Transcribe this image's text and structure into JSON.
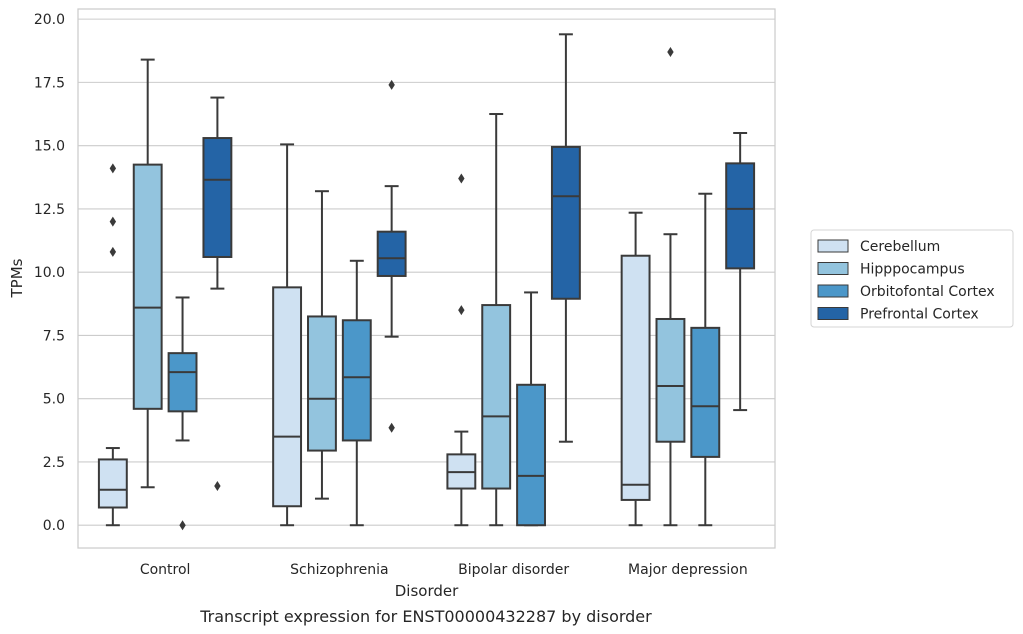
{
  "caption": "Transcript expression for ENST00000432287 by disorder",
  "chart_data": {
    "type": "box",
    "xlabel": "Disorder",
    "ylabel": "TPMs",
    "ylim": [
      -0.9,
      20.4
    ],
    "yticks": [
      "0.0",
      "2.5",
      "5.0",
      "7.5",
      "10.0",
      "12.5",
      "15.0",
      "17.5",
      "20.0"
    ],
    "categories": [
      "Control",
      "Schizophrenia",
      "Bipolar disorder",
      "Major depression"
    ],
    "grid": "horizontal",
    "legend_position": "right",
    "series": [
      {
        "name": "Cerebellum",
        "color": "#cfe1f2",
        "boxes": [
          {
            "whislo": 0.0,
            "q1": 0.7,
            "med": 1.4,
            "q3": 2.6,
            "whishi": 3.05,
            "fliers": [
              14.1,
              12.0,
              10.8
            ]
          },
          {
            "whislo": 0.0,
            "q1": 0.75,
            "med": 3.5,
            "q3": 9.4,
            "whishi": 15.05,
            "fliers": []
          },
          {
            "whislo": 0.0,
            "q1": 1.45,
            "med": 2.1,
            "q3": 2.8,
            "whishi": 3.7,
            "fliers": [
              13.7,
              8.5
            ]
          },
          {
            "whislo": 0.0,
            "q1": 1.0,
            "med": 1.6,
            "q3": 10.65,
            "whishi": 12.35,
            "fliers": []
          }
        ]
      },
      {
        "name": "Hipppocampus",
        "color": "#93c4de",
        "boxes": [
          {
            "whislo": 1.5,
            "q1": 4.6,
            "med": 8.6,
            "q3": 14.25,
            "whishi": 18.4,
            "fliers": []
          },
          {
            "whislo": 1.05,
            "q1": 2.95,
            "med": 5.0,
            "q3": 8.25,
            "whishi": 13.2,
            "fliers": []
          },
          {
            "whislo": 0.0,
            "q1": 1.45,
            "med": 4.3,
            "q3": 8.7,
            "whishi": 16.25,
            "fliers": []
          },
          {
            "whislo": 0.0,
            "q1": 3.3,
            "med": 5.5,
            "q3": 8.15,
            "whishi": 11.5,
            "fliers": [
              18.7
            ]
          }
        ]
      },
      {
        "name": "Orbitofontal Cortex",
        "color": "#4b97c9",
        "boxes": [
          {
            "whislo": 3.35,
            "q1": 4.5,
            "med": 6.05,
            "q3": 6.8,
            "whishi": 9.0,
            "fliers": [
              0.0
            ]
          },
          {
            "whislo": 0.0,
            "q1": 3.35,
            "med": 5.85,
            "q3": 8.1,
            "whishi": 10.45,
            "fliers": []
          },
          {
            "whislo": 0.0,
            "q1": 0.0,
            "med": 1.95,
            "q3": 5.55,
            "whishi": 9.2,
            "fliers": []
          },
          {
            "whislo": 0.0,
            "q1": 2.7,
            "med": 4.7,
            "q3": 7.8,
            "whishi": 13.1,
            "fliers": []
          }
        ]
      },
      {
        "name": "Prefrontal Cortex",
        "color": "#2464a6",
        "boxes": [
          {
            "whislo": 9.35,
            "q1": 10.6,
            "med": 13.65,
            "q3": 15.3,
            "whishi": 16.9,
            "fliers": [
              1.55
            ]
          },
          {
            "whislo": 7.45,
            "q1": 9.85,
            "med": 10.55,
            "q3": 11.6,
            "whishi": 13.4,
            "fliers": [
              17.4,
              3.85
            ]
          },
          {
            "whislo": 3.3,
            "q1": 8.95,
            "med": 13.0,
            "q3": 14.95,
            "whishi": 19.4,
            "fliers": []
          },
          {
            "whislo": 4.55,
            "q1": 10.15,
            "med": 12.5,
            "q3": 14.3,
            "whishi": 15.5,
            "fliers": []
          }
        ]
      }
    ]
  }
}
